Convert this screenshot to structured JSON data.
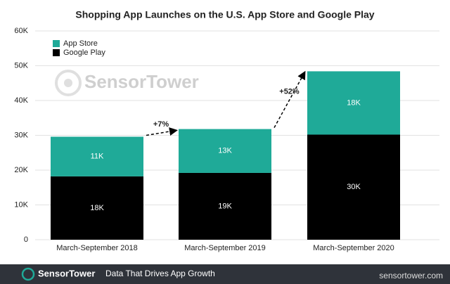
{
  "chart_data": {
    "type": "stacked_bar",
    "title": "Shopping App Launches on the U.S. App Store and Google Play",
    "categories": [
      "March-September 2018",
      "March-September 2019",
      "March-September 2020"
    ],
    "series": [
      {
        "name": "Google Play",
        "color": "#000000",
        "values": [
          18200,
          19200,
          30200
        ],
        "value_labels": [
          "18K",
          "19K",
          "30K"
        ]
      },
      {
        "name": "App Store",
        "color": "#1faa98",
        "values": [
          11400,
          12600,
          18200
        ],
        "value_labels": [
          "11K",
          "13K",
          "18K"
        ]
      }
    ],
    "ylim": [
      0,
      60000
    ],
    "yticks": [
      0,
      {
        "value": 10000,
        "label": "10K"
      },
      {
        "value": 20000,
        "label": "20K"
      },
      {
        "value": 30000,
        "label": "30K"
      },
      {
        "value": 40000,
        "label": "40K"
      },
      {
        "value": 50000,
        "label": "50K"
      },
      {
        "value": 60000,
        "label": "60K"
      }
    ],
    "grid": true,
    "annotations": [
      "+7%",
      "+52%"
    ],
    "watermark": "SensorTower",
    "footer": {
      "brand": "SensorTower",
      "tagline": "Data That Drives App Growth",
      "site": "sensortower.com"
    }
  }
}
